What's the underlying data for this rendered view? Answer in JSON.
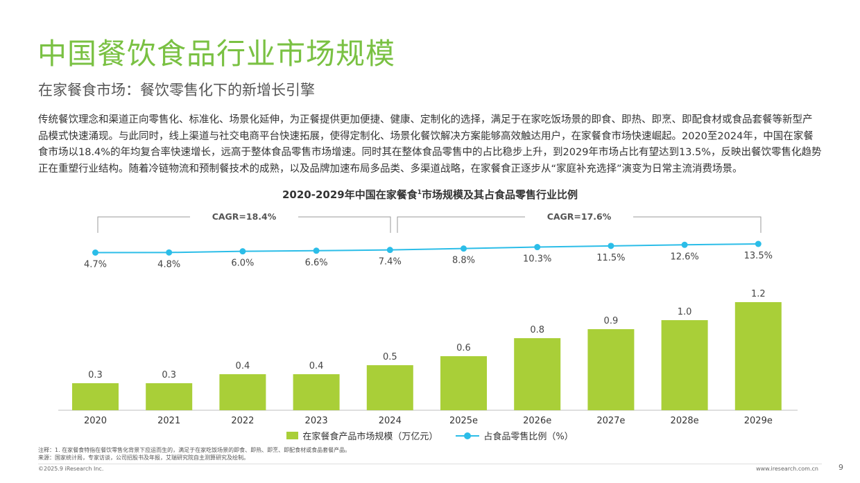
{
  "header": {
    "title": "中国餐饮食品行业市场规模",
    "subtitle": "在家餐食市场：餐饮零售化下的新增长引擎"
  },
  "description": "传统餐饮理念和渠道正向零售化、标准化、场景化延伸，为正餐提供更加便捷、健康、定制化的选择，满足于在家吃饭场景的即食、即热、即烹、即配食材或食品套餐等新型产品模式快速涌现。与此同时，线上渠道与社交电商平台快速拓展，使得定制化、场景化餐饮解决方案能够高效触达用户，在家餐食市场快速崛起。2020至2024年，中国在家餐食市场以18.4%的年均复合率快速增长，远高于整体食品零售市场增速。同时其在整体食品零售中的占比稳步上升，到2029年市场占比有望达到13.5%，反映出餐饮零售化趋势正在重塑行业结构。随着冷链物流和预制餐技术的成熟，以及品牌加速布局多品类、多渠道战略，在家餐食正逐步从“家庭补充选择”演变为日常主流消费场景。",
  "chart_data": {
    "type": "bar+line",
    "title_main": "2020-2029年中国在家餐食",
    "title_sup": "1",
    "title_tail": "市场规模及其占食品零售行业比例",
    "categories": [
      "2020",
      "2021",
      "2022",
      "2023",
      "2024",
      "2025e",
      "2026e",
      "2027e",
      "2028e",
      "2029e"
    ],
    "series": [
      {
        "name": "在家餐食产品市场规模（万亿元）",
        "type": "bar",
        "values": [
          0.3,
          0.3,
          0.4,
          0.4,
          0.5,
          0.6,
          0.8,
          0.9,
          1.0,
          1.2
        ],
        "labels": [
          "0.3",
          "0.3",
          "0.4",
          "0.4",
          "0.5",
          "0.6",
          "0.8",
          "0.9",
          "1.0",
          "1.2"
        ],
        "color": "#a9cf38"
      },
      {
        "name": "占食品零售比例（%）",
        "type": "line",
        "values": [
          4.7,
          4.8,
          6.0,
          6.6,
          7.4,
          8.8,
          10.3,
          11.5,
          12.6,
          13.5
        ],
        "labels": [
          "4.7%",
          "4.8%",
          "6.0%",
          "6.6%",
          "7.4%",
          "8.8%",
          "10.3%",
          "11.5%",
          "12.6%",
          "13.5%"
        ],
        "color": "#2bbde8"
      }
    ],
    "annotations": [
      {
        "text": "CAGR=18.4%",
        "from": "2020",
        "to": "2024"
      },
      {
        "text": "CAGR=17.6%",
        "from": "2024",
        "to": "2029e"
      }
    ]
  },
  "notes": [
    "注释：1. 在家餐食特指在餐饮零售化背景下应运而生的，满足于在家吃饭场景的即食、即热、即烹、即配食材或食品套餐产品。",
    "来源：国家统计局，专家访谈，公司招股书及年报，艾瑞研究院自主测算研究及绘制。"
  ],
  "footer": {
    "copyright": "©2025.9 iResearch Inc.",
    "website": "www.iresearch.com.cn",
    "page": "9"
  }
}
